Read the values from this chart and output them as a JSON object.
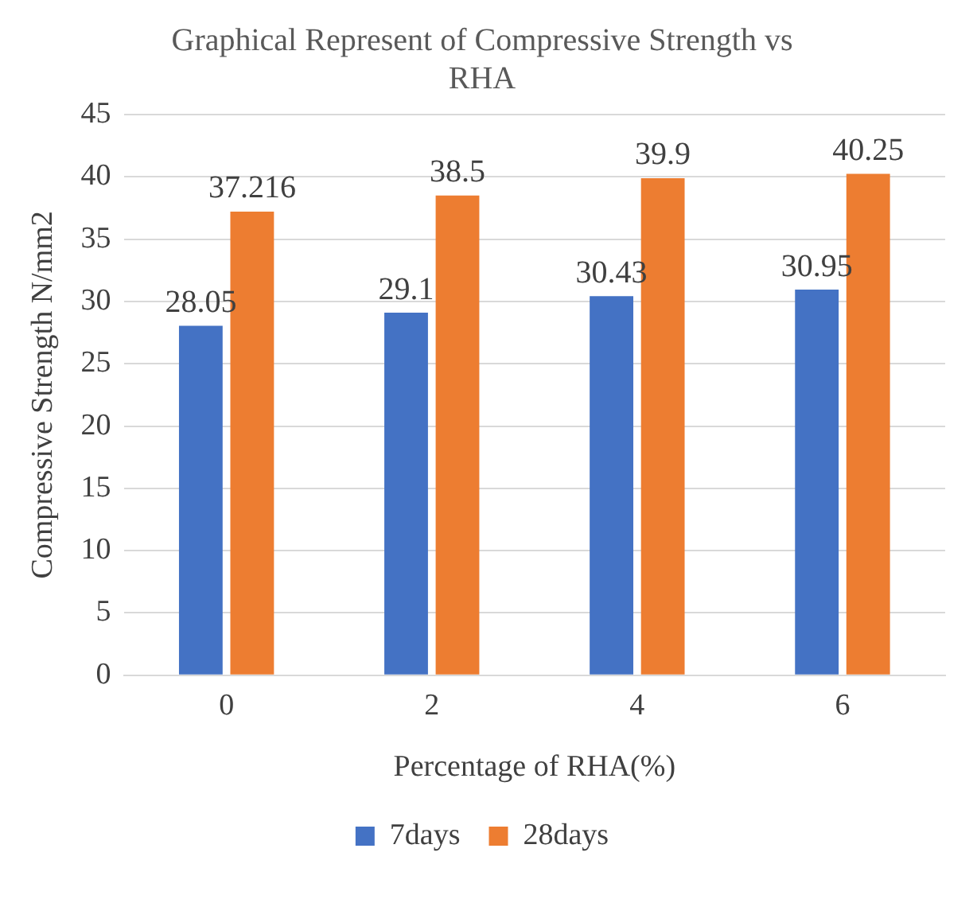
{
  "chart_data": {
    "type": "bar",
    "title": "Graphical Represent of Compressive Strength vs RHA",
    "xlabel": "Percentage of RHA(%)",
    "ylabel": "Compressive Strength N/mm2",
    "categories": [
      "0",
      "2",
      "4",
      "6"
    ],
    "series": [
      {
        "name": "7days",
        "color": "#4472c4",
        "values": [
          28.05,
          29.1,
          30.43,
          30.95
        ]
      },
      {
        "name": "28days",
        "color": "#ed7d31",
        "values": [
          37.216,
          38.5,
          39.9,
          40.25
        ]
      }
    ],
    "ylim": [
      0,
      45
    ],
    "yticks": [
      0,
      5,
      10,
      15,
      20,
      25,
      30,
      35,
      40,
      45
    ],
    "grid": "y",
    "legend": "bottom",
    "data_labels": true
  }
}
